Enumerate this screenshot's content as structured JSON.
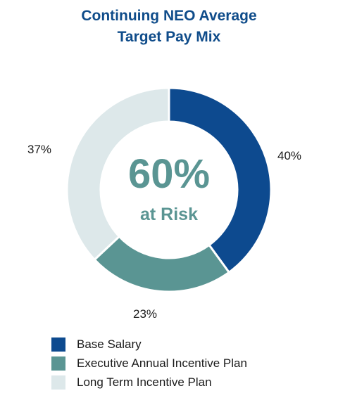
{
  "chart_data": {
    "type": "pie",
    "title": "Continuing NEO Average\nTarget Pay Mix",
    "title_lines": [
      "Continuing NEO Average",
      "Target Pay Mix"
    ],
    "center_text": {
      "value": "60%",
      "caption": "at Risk"
    },
    "categories": [
      "Base Salary",
      "Executive Annual Incentive Plan",
      "Long Term Incentive Plan"
    ],
    "values": [
      40,
      23,
      37
    ],
    "value_labels": [
      "40%",
      "23%",
      "37%"
    ],
    "colors": [
      "#0d4a8f",
      "#5a9593",
      "#dde8ea"
    ],
    "donut": true,
    "legend_position": "bottom-left"
  }
}
